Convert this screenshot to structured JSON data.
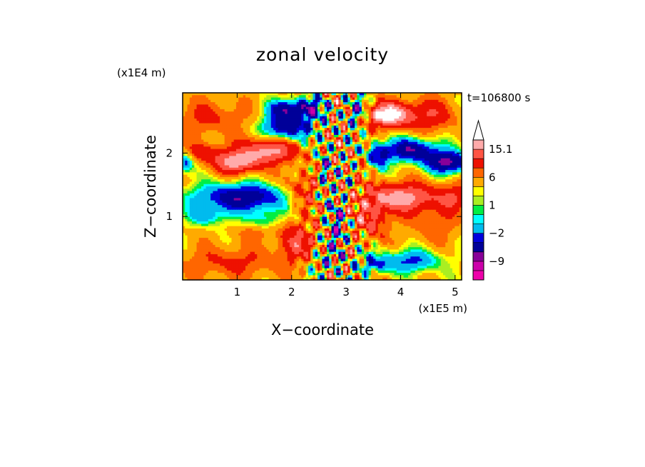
{
  "chart_data": {
    "type": "heatmap",
    "title": "zonal velocity",
    "xlabel": "X−coordinate",
    "ylabel": "Z−coordinate",
    "x_multiplier": "(x1E5 m)",
    "y_multiplier": "(x1E4 m)",
    "time_label": "t=106800 s",
    "xlim": [
      0,
      5.12
    ],
    "ylim": [
      0,
      2.95
    ],
    "x_ticks": [
      {
        "value": 1,
        "label": "1"
      },
      {
        "value": 2,
        "label": "2"
      },
      {
        "value": 3,
        "label": "3"
      },
      {
        "value": 4,
        "label": "4"
      },
      {
        "value": 5,
        "label": "5"
      }
    ],
    "y_ticks": [
      {
        "value": 1,
        "label": "1"
      },
      {
        "value": 2,
        "label": "2"
      }
    ],
    "colorbar": {
      "levels": [
        -15,
        -12,
        -9,
        -6,
        -4,
        -2,
        -1,
        0,
        1,
        2,
        4,
        6,
        9,
        12,
        15.1
      ],
      "colors": [
        "#ee00aa",
        "#cc00aa",
        "#880099",
        "#000099",
        "#0000dd",
        "#00bbee",
        "#00ffff",
        "#00ee44",
        "#aaee22",
        "#ffff00",
        "#ffaa00",
        "#ff6600",
        "#ee1100",
        "#ff5544",
        "#ffaaaa",
        "#ffffff"
      ],
      "labels": [
        {
          "value": 15.1,
          "label": "15.1"
        },
        {
          "value": 6,
          "label": "6"
        },
        {
          "value": 1,
          "label": "1"
        },
        {
          "value": -2,
          "label": "−2"
        },
        {
          "value": -9,
          "label": "−9"
        }
      ],
      "extend": "max"
    },
    "background_value": 2.5,
    "features": [
      {
        "x": 0.5,
        "z": 2.55,
        "amp": 4.0,
        "sx": 0.7,
        "sz": 0.28
      },
      {
        "x": 1.9,
        "z": 2.4,
        "amp": -11.0,
        "sx": 0.45,
        "sz": 0.22
      },
      {
        "x": 2.3,
        "z": 2.7,
        "amp": -10.0,
        "sx": 0.3,
        "sz": 0.18
      },
      {
        "x": 1.85,
        "z": 2.7,
        "amp": -8.0,
        "sx": 0.3,
        "sz": 0.14
      },
      {
        "x": 1.6,
        "z": 2.05,
        "amp": 11.0,
        "sx": 0.5,
        "sz": 0.2
      },
      {
        "x": 1.0,
        "z": 1.85,
        "amp": 11.0,
        "sx": 0.4,
        "sz": 0.17
      },
      {
        "x": 0.4,
        "z": 2.0,
        "amp": 5.0,
        "sx": 0.4,
        "sz": 0.16
      },
      {
        "x": 0.05,
        "z": 1.85,
        "amp": -8.0,
        "sx": 0.15,
        "sz": 0.15
      },
      {
        "x": 1.1,
        "z": 1.3,
        "amp": -11.0,
        "sx": 0.9,
        "sz": 0.22
      },
      {
        "x": 0.45,
        "z": 1.0,
        "amp": -5.0,
        "sx": 0.4,
        "sz": 0.15
      },
      {
        "x": 1.5,
        "z": 0.95,
        "amp": -4.0,
        "sx": 0.3,
        "sz": 0.15
      },
      {
        "x": 0.9,
        "z": 0.28,
        "amp": 4.0,
        "sx": 0.9,
        "sz": 0.25
      },
      {
        "x": 2.1,
        "z": 0.6,
        "amp": 7.0,
        "sx": 0.35,
        "sz": 0.3
      },
      {
        "x": 2.2,
        "z": 1.4,
        "amp": 6.0,
        "sx": 0.35,
        "sz": 0.3
      },
      {
        "x": 3.75,
        "z": 2.6,
        "amp": 15.0,
        "sx": 0.4,
        "sz": 0.18
      },
      {
        "x": 4.5,
        "z": 2.6,
        "amp": 6.0,
        "sx": 0.5,
        "sz": 0.25
      },
      {
        "x": 3.2,
        "z": 2.65,
        "amp": -8.0,
        "sx": 0.2,
        "sz": 0.2
      },
      {
        "x": 4.2,
        "z": 2.05,
        "amp": -11.0,
        "sx": 0.5,
        "sz": 0.18
      },
      {
        "x": 4.9,
        "z": 1.85,
        "amp": -12.0,
        "sx": 0.45,
        "sz": 0.17
      },
      {
        "x": 3.6,
        "z": 1.95,
        "amp": -8.0,
        "sx": 0.2,
        "sz": 0.2
      },
      {
        "x": 4.0,
        "z": 1.3,
        "amp": 11.0,
        "sx": 0.7,
        "sz": 0.22
      },
      {
        "x": 3.45,
        "z": 0.95,
        "amp": 7.0,
        "sx": 0.3,
        "sz": 0.3
      },
      {
        "x": 5.0,
        "z": 1.3,
        "amp": 5.0,
        "sx": 0.3,
        "sz": 0.2
      },
      {
        "x": 4.6,
        "z": 0.9,
        "amp": 3.0,
        "sx": 0.5,
        "sz": 0.3
      },
      {
        "x": 4.2,
        "z": 0.3,
        "amp": -7.0,
        "sx": 0.55,
        "sz": 0.18
      },
      {
        "x": 3.5,
        "z": 0.25,
        "amp": -6.0,
        "sx": 0.3,
        "sz": 0.15
      },
      {
        "x": 2.85,
        "z": 0.8,
        "amp": -7.0,
        "sx": 0.15,
        "sz": 0.5
      },
      {
        "x": 2.6,
        "z": 1.7,
        "amp": -6.0,
        "sx": 0.12,
        "sz": 0.4
      },
      {
        "x": 2.55,
        "z": 0.25,
        "amp": -3.5,
        "sx": 0.2,
        "sz": 0.2
      },
      {
        "x": 1.35,
        "z": 0.75,
        "amp": 2.5,
        "sx": 0.35,
        "sz": 0.12
      }
    ]
  }
}
